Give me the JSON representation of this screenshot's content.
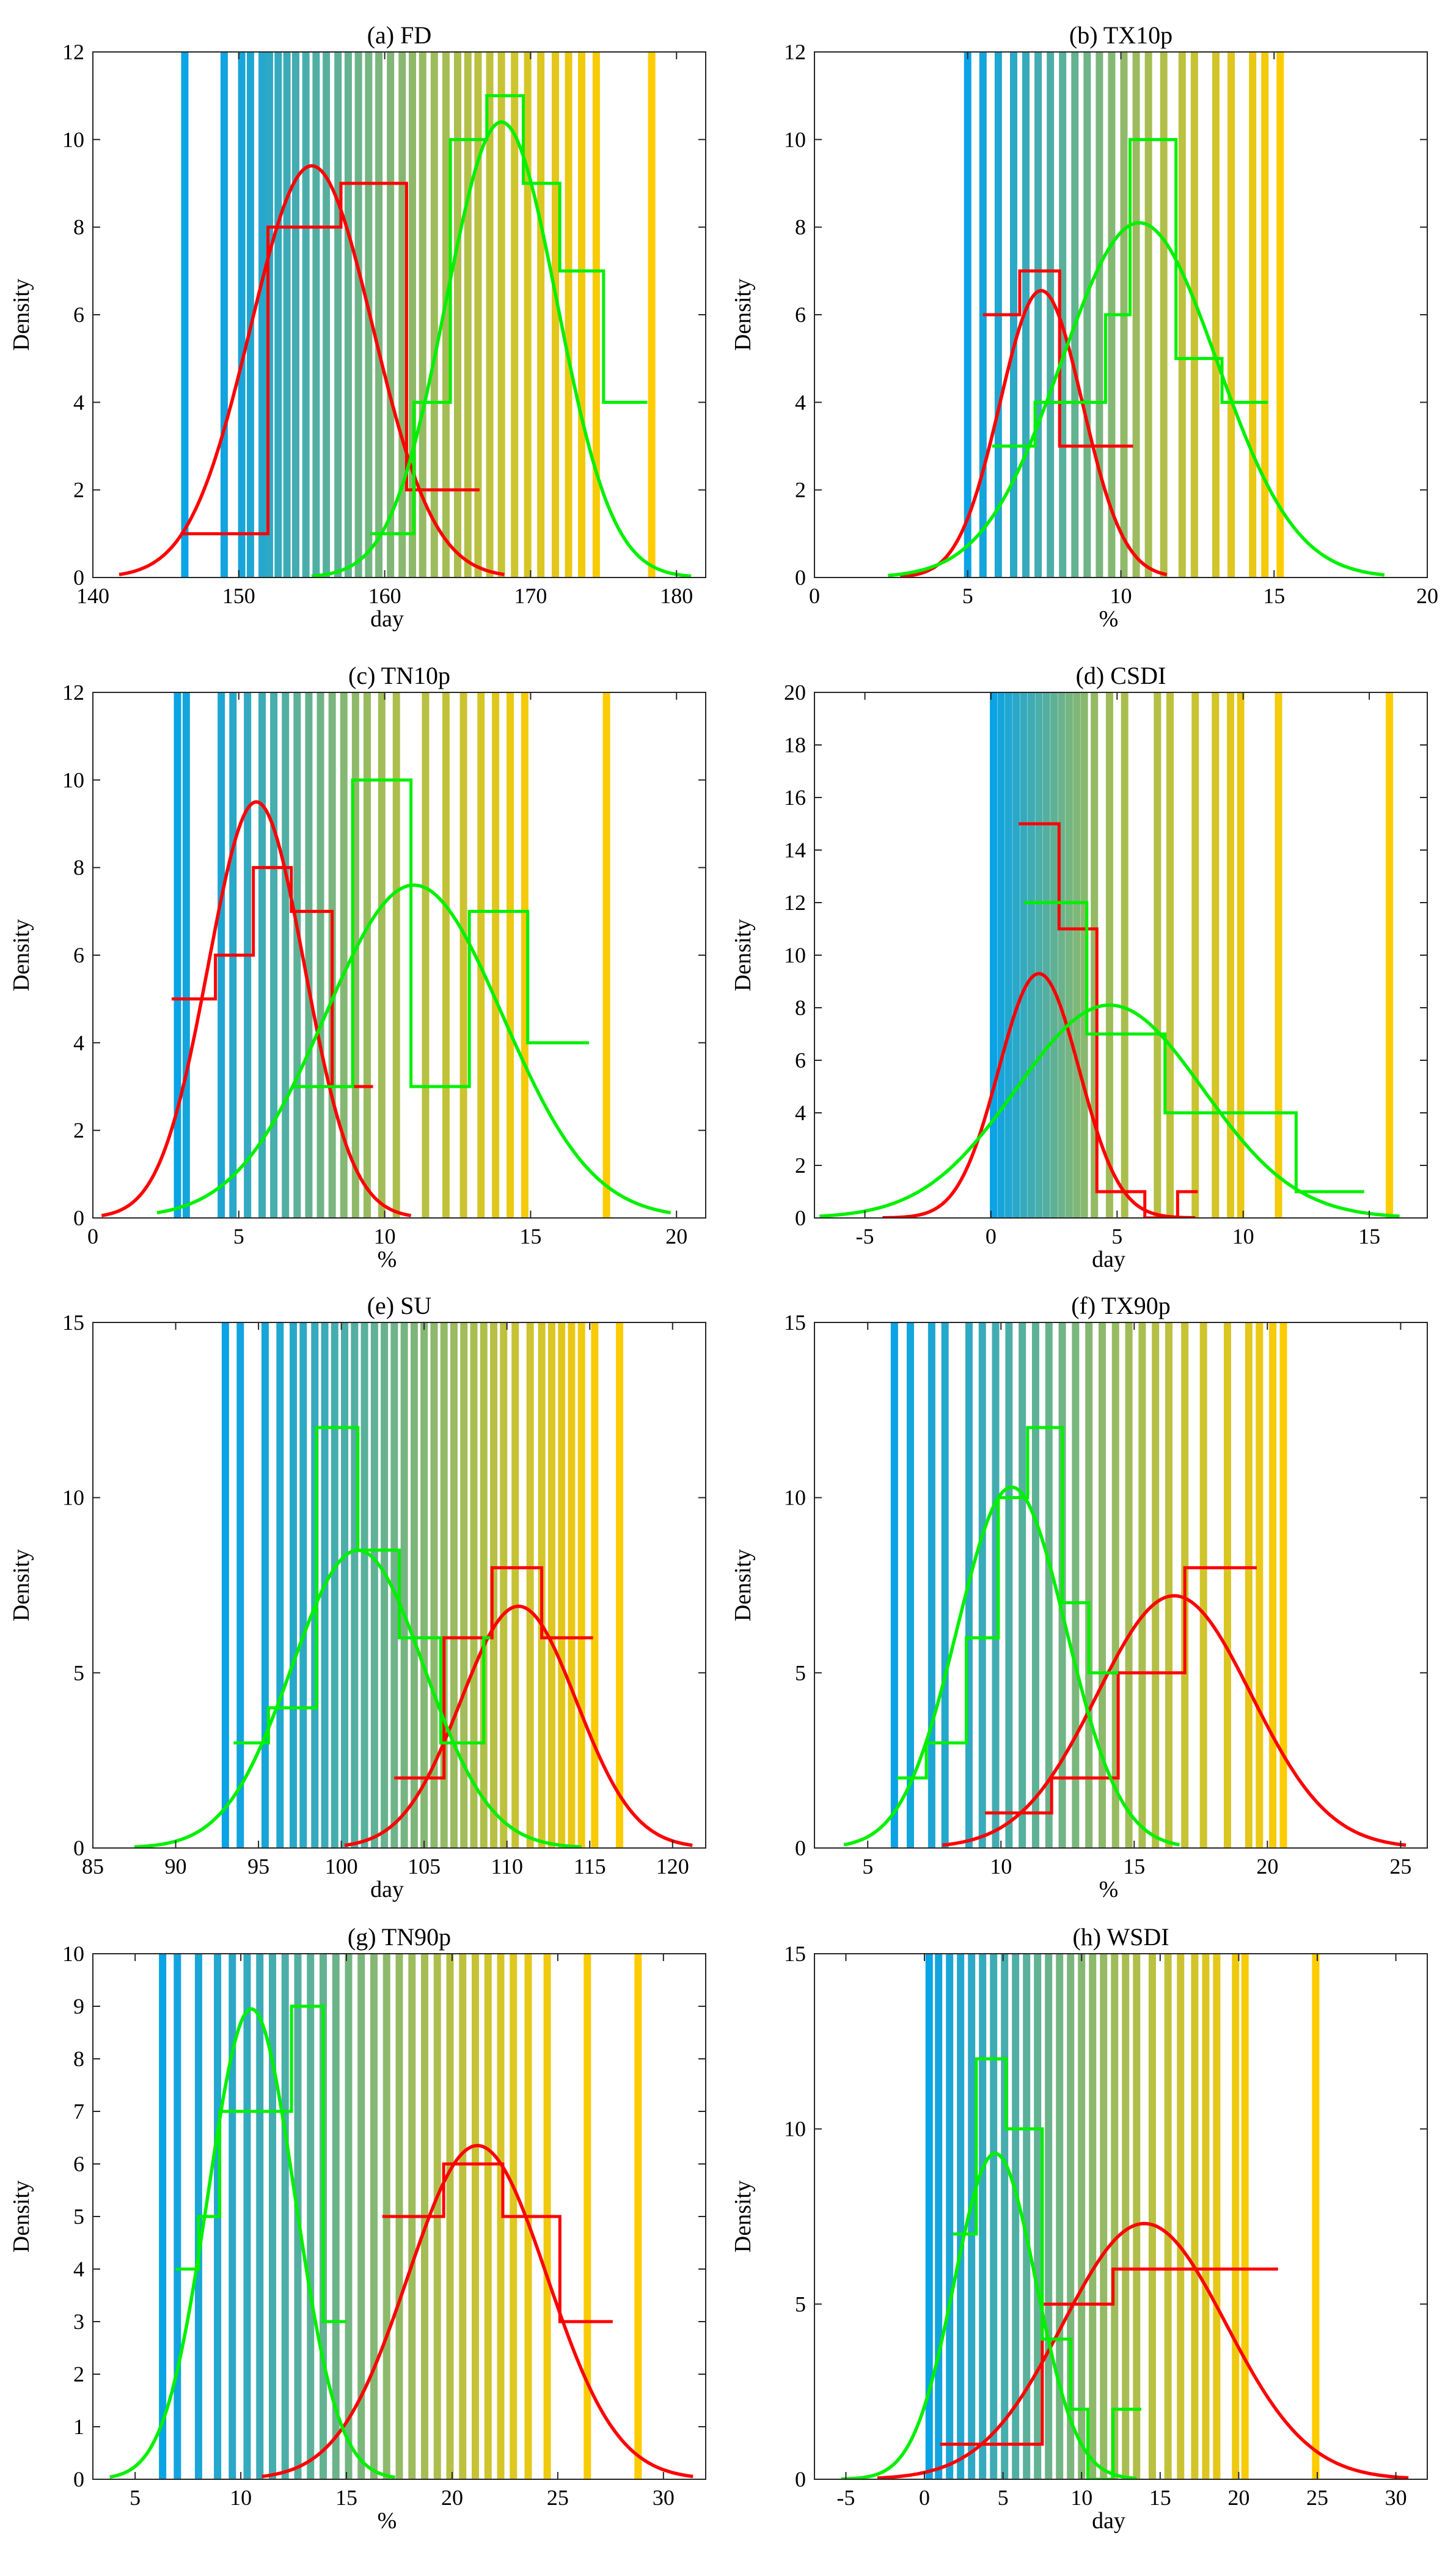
{
  "figure": {
    "colors": {
      "cold": "#0aa3e6",
      "warm": "#ffcc00",
      "red": "#ff0000",
      "green": "#00f000",
      "axis": "#262626"
    }
  },
  "chart_data": [
    {
      "id": "a",
      "type": "histogram",
      "title": "(a) FD",
      "xlabel": "day",
      "ylabel": "Density",
      "xlim": [
        140,
        182
      ],
      "ylim": [
        0,
        12
      ],
      "xticks": [
        140,
        150,
        160,
        170,
        180
      ],
      "xtick_labels": [
        "140",
        "150",
        "160",
        "170",
        "180"
      ],
      "yticks": [
        0,
        2,
        4,
        6,
        8,
        10,
        12
      ],
      "ytick_labels": [
        "0",
        "2",
        "4",
        "6",
        "8",
        "10",
        "12"
      ],
      "stripes": [
        146.3,
        149,
        150.2,
        150.8,
        151.6,
        152.1,
        152.7,
        153.3,
        153.9,
        154.6,
        155.3,
        156,
        156.8,
        157.5,
        158.2,
        158.9,
        159.6,
        160.4,
        161.2,
        161.9,
        162.6,
        163.4,
        164.2,
        165,
        165.7,
        166.4,
        167.2,
        168,
        168.9,
        169.8,
        170.7,
        171.7,
        172.6,
        173.5,
        174.5,
        178.3
      ],
      "series": [
        {
          "name": "red",
          "color": "#ff0000",
          "step_x": [
            146,
            152,
            157,
            161.5,
            166.5
          ],
          "step_y": [
            1,
            8,
            9,
            2
          ],
          "curve": {
            "mu": 155,
            "peak": 9.4,
            "sigma": 4.2,
            "x_range": [
              141.8,
              168.2
            ]
          }
        },
        {
          "name": "green",
          "color": "#00f000",
          "step_x": [
            159,
            162,
            164.5,
            167,
            169.5,
            172,
            175,
            178
          ],
          "step_y": [
            1,
            4,
            10,
            11,
            9,
            7,
            4
          ],
          "curve": {
            "mu": 168,
            "peak": 10.4,
            "sigma": 3.8,
            "x_range": [
              155,
              181
            ]
          }
        }
      ]
    },
    {
      "id": "b",
      "type": "histogram",
      "title": "(b) TX10p",
      "xlabel": "%",
      "ylabel": "Density",
      "xlim": [
        0,
        20
      ],
      "ylim": [
        0,
        12
      ],
      "xticks": [
        0,
        5,
        10,
        15,
        20
      ],
      "xtick_labels": [
        "0",
        "5",
        "10",
        "15",
        "20"
      ],
      "yticks": [
        0,
        2,
        4,
        6,
        8,
        10,
        12
      ],
      "ytick_labels": [
        "0",
        "2",
        "4",
        "6",
        "8",
        "10",
        "12"
      ],
      "stripes": [
        5,
        5.5,
        6,
        6.5,
        6.9,
        7.3,
        7.7,
        8.1,
        8.5,
        8.9,
        9.3,
        9.7,
        10.1,
        10.5,
        10.9,
        11.4,
        12,
        12.4,
        13.1,
        13.6,
        14.3,
        14.7,
        15.2
      ],
      "series": [
        {
          "name": "red",
          "color": "#ff0000",
          "step_x": [
            5.5,
            6.7,
            8,
            10.4
          ],
          "step_y": [
            6,
            7,
            3
          ],
          "curve": {
            "mu": 7.4,
            "peak": 6.55,
            "sigma": 1.35,
            "x_range": [
              2.8,
              11.5
            ]
          }
        },
        {
          "name": "green",
          "color": "#00f000",
          "step_x": [
            5.8,
            7.2,
            8.3,
            9.5,
            10.3,
            11.8,
            13.3,
            14.8
          ],
          "step_y": [
            3,
            4,
            4,
            6,
            10,
            5,
            4
          ],
          "curve": {
            "mu": 10.6,
            "peak": 8.1,
            "sigma": 2.55,
            "x_range": [
              2.4,
              18.6
            ]
          }
        }
      ]
    },
    {
      "id": "c",
      "type": "histogram",
      "title": "(c) TN10p",
      "xlabel": "%",
      "ylabel": "Density",
      "xlim": [
        0,
        21
      ],
      "ylim": [
        0,
        12
      ],
      "xticks": [
        0,
        5,
        10,
        15,
        20
      ],
      "xtick_labels": [
        "0",
        "5",
        "10",
        "15",
        "20"
      ],
      "yticks": [
        0,
        2,
        4,
        6,
        8,
        10,
        12
      ],
      "ytick_labels": [
        "0",
        "2",
        "4",
        "6",
        "8",
        "10",
        "12"
      ],
      "stripes": [
        2.9,
        3.2,
        4.4,
        4.8,
        5.3,
        5.8,
        6.2,
        6.6,
        7,
        7.4,
        7.8,
        8.2,
        8.6,
        9,
        9.4,
        9.9,
        10.4,
        11.4,
        12.1,
        12.7,
        13.3,
        13.8,
        14.3,
        14.8,
        17.6
      ],
      "series": [
        {
          "name": "red",
          "color": "#ff0000",
          "step_x": [
            2.7,
            4.2,
            5.5,
            6.8,
            8.2,
            9.6
          ],
          "step_y": [
            5,
            6,
            8,
            7,
            3
          ],
          "curve": {
            "mu": 5.6,
            "peak": 9.5,
            "sigma": 1.65,
            "x_range": [
              0.3,
              10.9
            ]
          }
        },
        {
          "name": "green",
          "color": "#00f000",
          "step_x": [
            6.9,
            8.9,
            10.9,
            12.9,
            14.9,
            17
          ],
          "step_y": [
            3,
            10,
            3,
            7,
            4
          ],
          "curve": {
            "mu": 11,
            "peak": 7.6,
            "sigma": 3.05,
            "x_range": [
              2.2,
              19.8
            ]
          }
        }
      ]
    },
    {
      "id": "d",
      "type": "histogram",
      "title": "(d) CSDI",
      "xlabel": "day",
      "ylabel": "Density",
      "xlim": [
        -7,
        17.3
      ],
      "ylim": [
        0,
        20
      ],
      "xticks": [
        -5,
        0,
        5,
        10,
        15
      ],
      "xtick_labels": [
        "-5",
        "0",
        "5",
        "10",
        "15"
      ],
      "yticks": [
        0,
        2,
        4,
        6,
        8,
        10,
        12,
        14,
        16,
        18,
        20
      ],
      "ytick_labels": [
        "0",
        "2",
        "4",
        "6",
        "8",
        "10",
        "12",
        "14",
        "16",
        "18",
        "20"
      ],
      "stripes": [
        0.1,
        0.4,
        0.7,
        1,
        1.3,
        1.6,
        1.9,
        2.2,
        2.5,
        2.8,
        3.1,
        3.4,
        3.7,
        4.1,
        4.7,
        5.3,
        6.6,
        7.1,
        8.1,
        8.9,
        9.5,
        9.9,
        11.4,
        15.8
      ],
      "series": [
        {
          "name": "red",
          "color": "#ff0000",
          "step_x": [
            1.1,
            2.7,
            4.2,
            6.1,
            7.4,
            8.2
          ],
          "step_y": [
            15,
            11,
            1,
            0,
            1
          ],
          "curve": {
            "mu": 1.9,
            "peak": 9.3,
            "sigma": 1.6,
            "x_range": [
              -4.3,
              8.1
            ]
          }
        },
        {
          "name": "green",
          "color": "#00f000",
          "step_x": [
            1.3,
            3.8,
            6.9,
            12.1,
            14.8
          ],
          "step_y": [
            12,
            7,
            4,
            1
          ],
          "curve": {
            "mu": 4.7,
            "peak": 8.1,
            "sigma": 3.7,
            "x_range": [
              -6.8,
              16.2
            ]
          }
        }
      ]
    },
    {
      "id": "e",
      "type": "histogram",
      "title": "(e) SU",
      "xlabel": "day",
      "ylabel": "Density",
      "xlim": [
        85,
        122
      ],
      "ylim": [
        0,
        15
      ],
      "xticks": [
        85,
        90,
        95,
        100,
        105,
        110,
        115,
        120
      ],
      "xtick_labels": [
        "85",
        "90",
        "95",
        "100",
        "105",
        "110",
        "115",
        "120"
      ],
      "yticks": [
        0,
        5,
        10,
        15
      ],
      "ytick_labels": [
        "0",
        "5",
        "10",
        "15"
      ],
      "stripes": [
        93,
        93.9,
        95.4,
        96.3,
        97.1,
        97.7,
        98.4,
        99,
        99.6,
        100.2,
        100.8,
        101.4,
        102,
        102.6,
        103.2,
        103.8,
        104.4,
        105,
        105.6,
        106.2,
        106.8,
        107.4,
        108,
        108.6,
        109.2,
        109.8,
        110.5,
        111.4,
        112.1,
        112.7,
        113.3,
        113.9,
        114.5,
        115.3,
        116.8
      ],
      "series": [
        {
          "name": "red",
          "color": "#ff0000",
          "step_x": [
            103.2,
            106.2,
            109.1,
            112.1,
            115.2
          ],
          "step_y": [
            2,
            6,
            8,
            6
          ],
          "curve": {
            "mu": 110.7,
            "peak": 6.9,
            "sigma": 3.5,
            "x_range": [
              100.2,
              121.2
            ]
          }
        },
        {
          "name": "green",
          "color": "#00f000",
          "step_x": [
            93.5,
            95.6,
            98.5,
            101,
            103.5,
            106,
            108.6,
            109
          ],
          "step_y": [
            3,
            4,
            12,
            8.5,
            6,
            3,
            6
          ],
          "curve": {
            "mu": 101,
            "peak": 8.5,
            "sigma": 4,
            "x_range": [
              87.5,
              114.5
            ]
          }
        }
      ]
    },
    {
      "id": "f",
      "type": "histogram",
      "title": "(f) TX90p",
      "xlabel": "%",
      "ylabel": "Density",
      "xlim": [
        3,
        26
      ],
      "ylim": [
        0,
        15
      ],
      "xticks": [
        5,
        10,
        15,
        20,
        25
      ],
      "xtick_labels": [
        "5",
        "10",
        "15",
        "20",
        "25"
      ],
      "yticks": [
        0,
        5,
        10,
        15
      ],
      "ytick_labels": [
        "0",
        "5",
        "10",
        "15"
      ],
      "stripes": [
        6,
        6.6,
        7.4,
        7.9,
        8.8,
        9.3,
        9.8,
        10.3,
        10.8,
        11.3,
        11.8,
        12.3,
        12.8,
        13.3,
        13.8,
        14.3,
        14.8,
        15.3,
        15.8,
        16.3,
        16.9,
        17.6,
        18.5,
        19.3,
        19.7,
        20.2,
        20.6
      ],
      "series": [
        {
          "name": "red",
          "color": "#ff0000",
          "step_x": [
            9.4,
            11.9,
            14.4,
            16.9,
            19.6
          ],
          "step_y": [
            1,
            2,
            5,
            8
          ],
          "curve": {
            "mu": 16.5,
            "peak": 7.2,
            "sigma": 2.9,
            "x_range": [
              7.8,
              25.2
            ]
          }
        },
        {
          "name": "green",
          "color": "#00f000",
          "step_x": [
            6.1,
            7.2,
            8.7,
            9.9,
            11,
            12.3,
            13.3,
            14.4
          ],
          "step_y": [
            2,
            3,
            6,
            10,
            12,
            7,
            5
          ],
          "curve": {
            "mu": 10.4,
            "peak": 10.3,
            "sigma": 2.05,
            "x_range": [
              4.1,
              16.7
            ]
          }
        }
      ]
    },
    {
      "id": "g",
      "type": "histogram",
      "title": "(g) TN90p",
      "xlabel": "%",
      "ylabel": "Density",
      "xlim": [
        3,
        32
      ],
      "ylim": [
        0,
        10
      ],
      "xticks": [
        5,
        10,
        15,
        20,
        25,
        30
      ],
      "xtick_labels": [
        "5",
        "10",
        "15",
        "20",
        "25",
        "30"
      ],
      "yticks": [
        0,
        1,
        2,
        3,
        4,
        5,
        6,
        7,
        8,
        9,
        10
      ],
      "ytick_labels": [
        "0",
        "1",
        "2",
        "3",
        "4",
        "5",
        "6",
        "7",
        "8",
        "9",
        "10"
      ],
      "stripes": [
        6.3,
        7,
        8,
        8.9,
        9.6,
        10.3,
        10.9,
        11.5,
        12.1,
        12.7,
        13.3,
        13.9,
        14.5,
        15.1,
        15.7,
        16.3,
        16.9,
        17.5,
        18.1,
        18.7,
        19.3,
        19.9,
        20.5,
        21.1,
        21.7,
        22.3,
        22.9,
        23.6,
        24.5,
        26.4,
        28.8
      ],
      "series": [
        {
          "name": "red",
          "color": "#ff0000",
          "step_x": [
            16.7,
            19.6,
            22.4,
            25.1,
            27.6
          ],
          "step_y": [
            5,
            6,
            5,
            3
          ],
          "curve": {
            "mu": 21.2,
            "peak": 6.35,
            "sigma": 3.3,
            "x_range": [
              11,
              31.4
            ]
          }
        },
        {
          "name": "green",
          "color": "#00f000",
          "step_x": [
            6.9,
            8,
            9,
            10,
            12.4,
            13.9,
            15
          ],
          "step_y": [
            4,
            5,
            7,
            7,
            9,
            3
          ],
          "curve": {
            "mu": 10.5,
            "peak": 8.95,
            "sigma": 2.05,
            "x_range": [
              3.8,
              17.3
            ]
          }
        }
      ]
    },
    {
      "id": "h",
      "type": "histogram",
      "title": "(h) WSDI",
      "xlabel": "day",
      "ylabel": "Density",
      "xlim": [
        -7,
        32
      ],
      "ylim": [
        0,
        15
      ],
      "xticks": [
        -5,
        0,
        5,
        10,
        15,
        20,
        25,
        30
      ],
      "xtick_labels": [
        "-5",
        "0",
        "5",
        "10",
        "15",
        "20",
        "25",
        "30"
      ],
      "yticks": [
        0,
        5,
        10,
        15
      ],
      "ytick_labels": [
        "0",
        "5",
        "10",
        "15"
      ],
      "stripes": [
        0.3,
        0.9,
        1.6,
        2.3,
        3,
        3.7,
        4.4,
        5.1,
        5.8,
        6.5,
        7.2,
        7.9,
        8.6,
        9.3,
        10,
        10.7,
        11.4,
        12.1,
        12.8,
        13.5,
        14.5,
        15.5,
        16.3,
        17.2,
        17.9,
        18.6,
        19.8,
        20.4,
        24.9
      ],
      "series": [
        {
          "name": "red",
          "color": "#ff0000",
          "step_x": [
            1,
            7.5,
            12,
            17,
            22.5
          ],
          "step_y": [
            1,
            5,
            6,
            6
          ],
          "curve": {
            "mu": 14,
            "peak": 7.3,
            "sigma": 5.2,
            "x_range": [
              -3,
              30.8
            ]
          }
        },
        {
          "name": "green",
          "color": "#00f000",
          "step_x": [
            1.8,
            3.3,
            5.2,
            7.5,
            9.3,
            10.4,
            12,
            13.8
          ],
          "step_y": [
            7,
            12,
            10,
            4,
            2,
            0,
            2
          ],
          "curve": {
            "mu": 4.5,
            "peak": 9.3,
            "sigma": 2.6,
            "x_range": [
              -5.3,
              13.5
            ]
          }
        }
      ]
    }
  ]
}
